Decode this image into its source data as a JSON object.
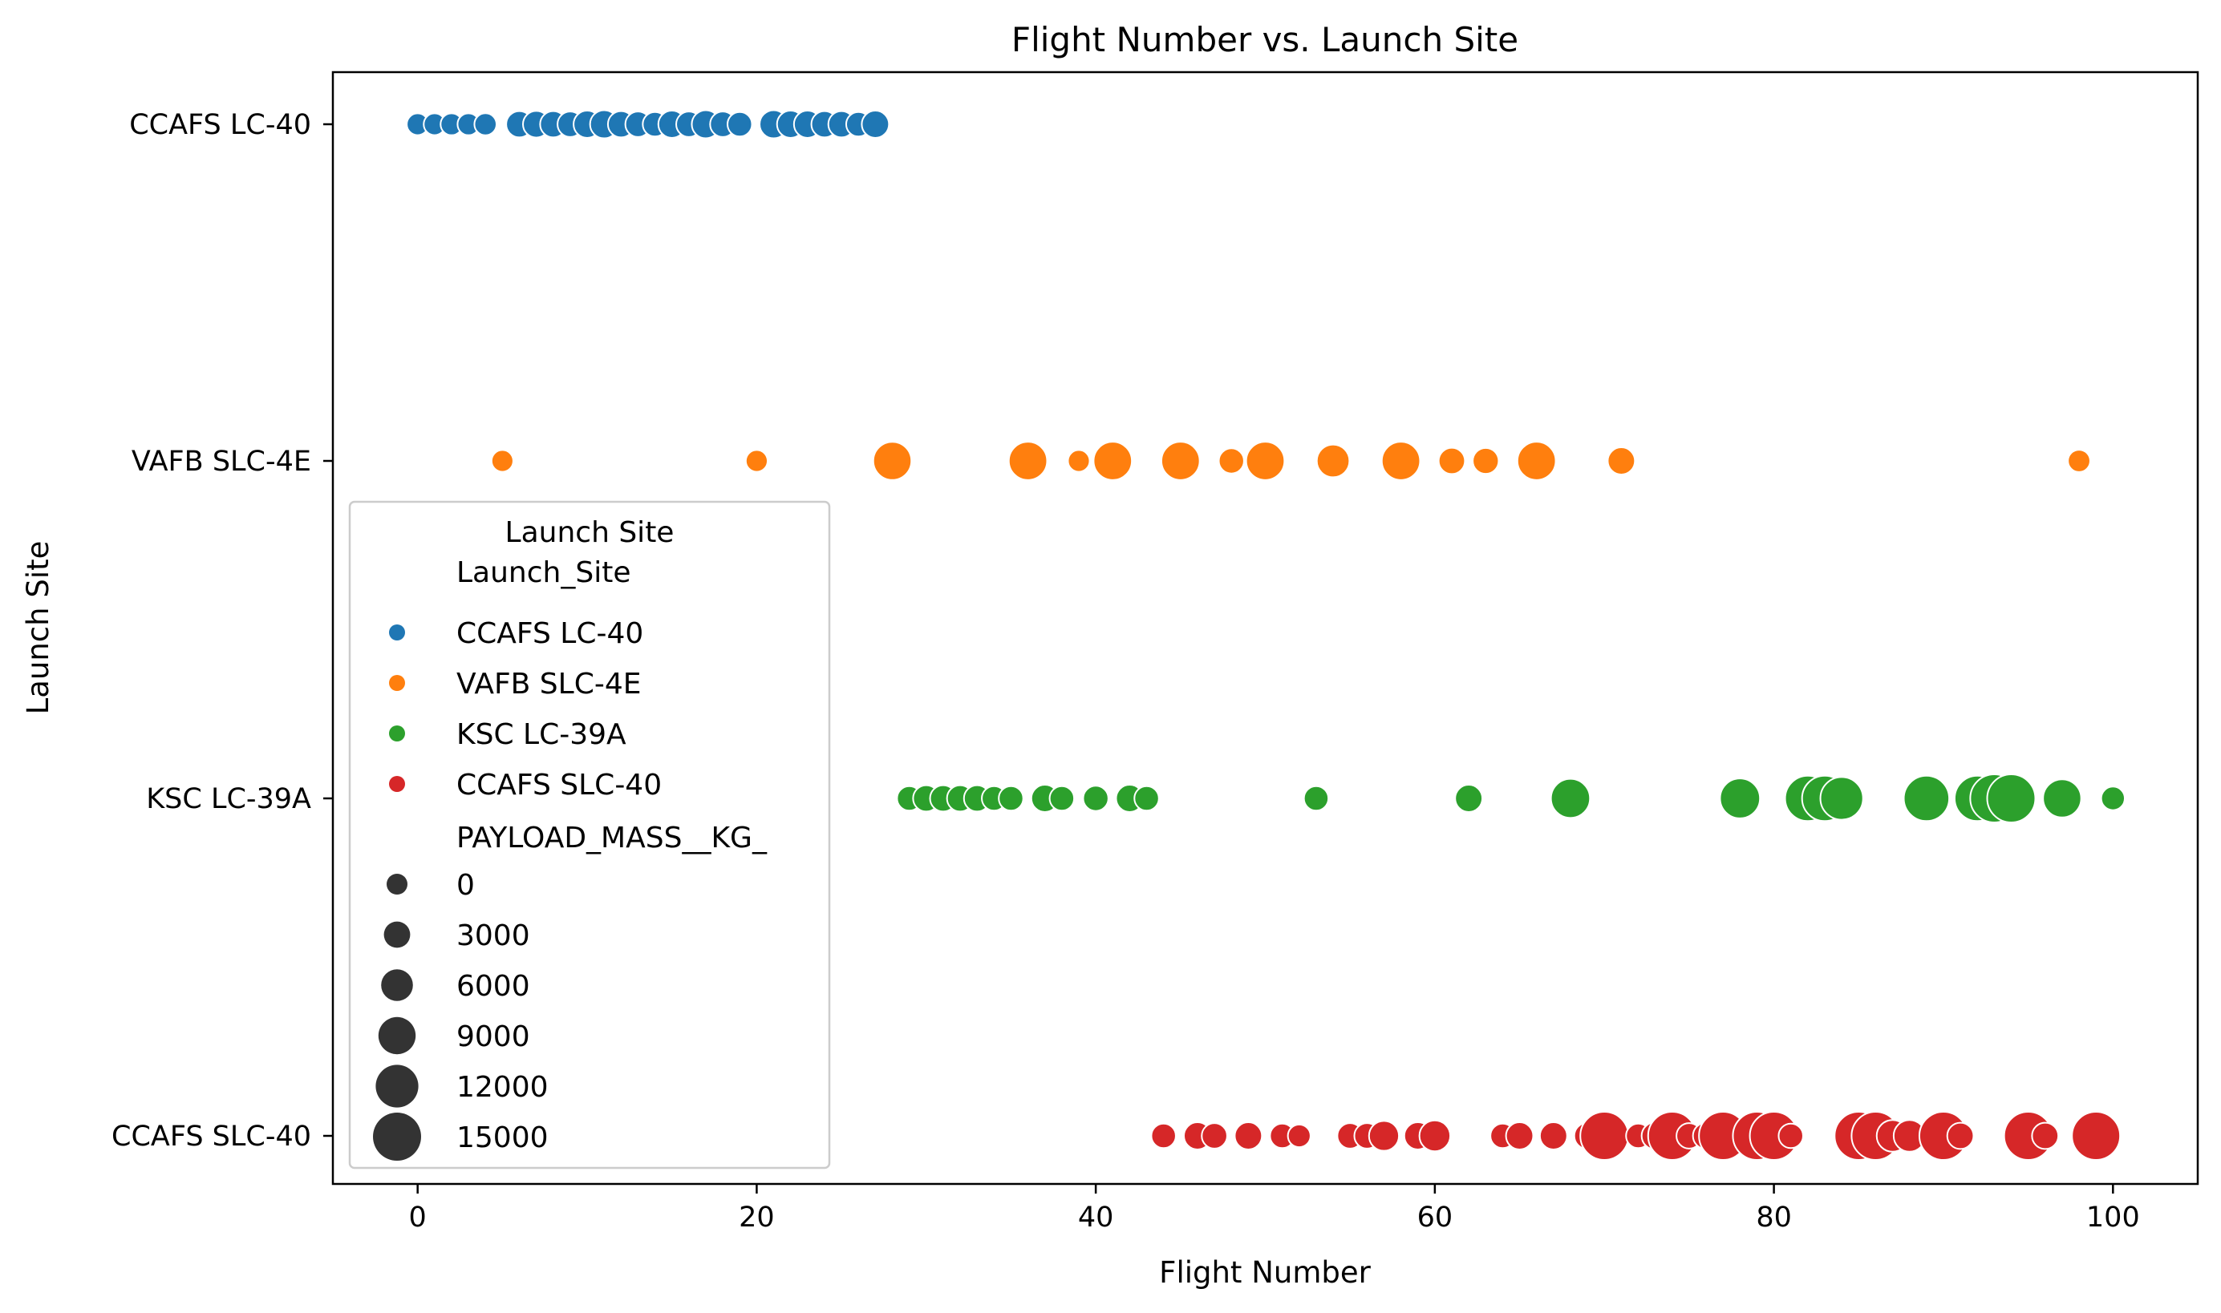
{
  "chart_data": {
    "type": "scatter",
    "title": "Flight Number vs. Launch Site",
    "xlabel": "Flight Number",
    "ylabel": "Launch Site",
    "xlim": [
      -5,
      105
    ],
    "x_ticks": [
      0,
      20,
      40,
      60,
      80,
      100
    ],
    "y_categories": [
      "CCAFS LC-40",
      "VAFB SLC-4E",
      "KSC LC-39A",
      "CCAFS SLC-40"
    ],
    "grid": false,
    "legend": {
      "placement": "center-left",
      "title": "Launch Site",
      "hue_header": "Launch_Site",
      "size_header": "PAYLOAD_MASS__KG_",
      "size_levels": [
        0,
        3000,
        6000,
        9000,
        12000,
        15000
      ]
    },
    "series": [
      {
        "name": "CCAFS LC-40",
        "color": "#1f77b4",
        "points": [
          {
            "x": 0,
            "size": 500
          },
          {
            "x": 1,
            "size": 500
          },
          {
            "x": 2,
            "size": 600
          },
          {
            "x": 3,
            "size": 600
          },
          {
            "x": 4,
            "size": 700
          },
          {
            "x": 6,
            "size": 3000
          },
          {
            "x": 7,
            "size": 3200
          },
          {
            "x": 8,
            "size": 3000
          },
          {
            "x": 9,
            "size": 2500
          },
          {
            "x": 10,
            "size": 3500
          },
          {
            "x": 11,
            "size": 4000
          },
          {
            "x": 12,
            "size": 3000
          },
          {
            "x": 13,
            "size": 2500
          },
          {
            "x": 14,
            "size": 2000
          },
          {
            "x": 15,
            "size": 3500
          },
          {
            "x": 16,
            "size": 2500
          },
          {
            "x": 17,
            "size": 4000
          },
          {
            "x": 18,
            "size": 2500
          },
          {
            "x": 19,
            "size": 2000
          },
          {
            "x": 21,
            "size": 4000
          },
          {
            "x": 22,
            "size": 3500
          },
          {
            "x": 23,
            "size": 3500
          },
          {
            "x": 24,
            "size": 3000
          },
          {
            "x": 25,
            "size": 3000
          },
          {
            "x": 26,
            "size": 2000
          },
          {
            "x": 27,
            "size": 3500
          }
        ]
      },
      {
        "name": "VAFB SLC-4E",
        "color": "#ff7f0e",
        "points": [
          {
            "x": 5,
            "size": 500
          },
          {
            "x": 20,
            "size": 550
          },
          {
            "x": 28,
            "size": 9500
          },
          {
            "x": 36,
            "size": 9600
          },
          {
            "x": 39,
            "size": 500
          },
          {
            "x": 41,
            "size": 9600
          },
          {
            "x": 45,
            "size": 9600
          },
          {
            "x": 48,
            "size": 2400
          },
          {
            "x": 50,
            "size": 9600
          },
          {
            "x": 54,
            "size": 6500
          },
          {
            "x": 58,
            "size": 9600
          },
          {
            "x": 61,
            "size": 3000
          },
          {
            "x": 63,
            "size": 2800
          },
          {
            "x": 66,
            "size": 9600
          },
          {
            "x": 71,
            "size": 3500
          },
          {
            "x": 98,
            "size": 800
          }
        ]
      },
      {
        "name": "KSC LC-39A",
        "color": "#2ca02c",
        "points": [
          {
            "x": 29,
            "size": 2000
          },
          {
            "x": 30,
            "size": 3000
          },
          {
            "x": 31,
            "size": 3000
          },
          {
            "x": 32,
            "size": 3000
          },
          {
            "x": 33,
            "size": 3000
          },
          {
            "x": 34,
            "size": 2000
          },
          {
            "x": 35,
            "size": 2000
          },
          {
            "x": 37,
            "size": 3500
          },
          {
            "x": 38,
            "size": 2000
          },
          {
            "x": 40,
            "size": 2400
          },
          {
            "x": 42,
            "size": 3500
          },
          {
            "x": 43,
            "size": 2000
          },
          {
            "x": 53,
            "size": 2000
          },
          {
            "x": 62,
            "size": 3500
          },
          {
            "x": 68,
            "size": 10000
          },
          {
            "x": 78,
            "size": 10500
          },
          {
            "x": 82,
            "size": 13500
          },
          {
            "x": 83,
            "size": 13500
          },
          {
            "x": 84,
            "size": 12000
          },
          {
            "x": 89,
            "size": 13500
          },
          {
            "x": 92,
            "size": 13500
          },
          {
            "x": 93,
            "size": 15000
          },
          {
            "x": 94,
            "size": 15000
          },
          {
            "x": 97,
            "size": 9500
          },
          {
            "x": 100,
            "size": 1500
          }
        ]
      },
      {
        "name": "CCAFS SLC-40",
        "color": "#d62728",
        "points": [
          {
            "x": 44,
            "size": 2000
          },
          {
            "x": 46,
            "size": 3500
          },
          {
            "x": 47,
            "size": 2500
          },
          {
            "x": 49,
            "size": 3500
          },
          {
            "x": 51,
            "size": 2000
          },
          {
            "x": 52,
            "size": 1000
          },
          {
            "x": 55,
            "size": 2500
          },
          {
            "x": 56,
            "size": 2500
          },
          {
            "x": 57,
            "size": 5000
          },
          {
            "x": 59,
            "size": 3500
          },
          {
            "x": 60,
            "size": 5500
          },
          {
            "x": 64,
            "size": 2000
          },
          {
            "x": 65,
            "size": 3500
          },
          {
            "x": 67,
            "size": 3500
          },
          {
            "x": 69,
            "size": 3000
          },
          {
            "x": 70,
            "size": 15000
          },
          {
            "x": 72,
            "size": 2000
          },
          {
            "x": 73,
            "size": 3500
          },
          {
            "x": 74,
            "size": 15000
          },
          {
            "x": 75,
            "size": 2500
          },
          {
            "x": 76,
            "size": 3000
          },
          {
            "x": 77,
            "size": 15000
          },
          {
            "x": 79,
            "size": 15000
          },
          {
            "x": 80,
            "size": 15000
          },
          {
            "x": 81,
            "size": 2000
          },
          {
            "x": 85,
            "size": 15000
          },
          {
            "x": 86,
            "size": 15000
          },
          {
            "x": 87,
            "size": 6000
          },
          {
            "x": 88,
            "size": 6000
          },
          {
            "x": 90,
            "size": 15000
          },
          {
            "x": 91,
            "size": 3000
          },
          {
            "x": 95,
            "size": 15000
          },
          {
            "x": 96,
            "size": 3000
          },
          {
            "x": 99,
            "size": 15000
          }
        ]
      }
    ]
  }
}
